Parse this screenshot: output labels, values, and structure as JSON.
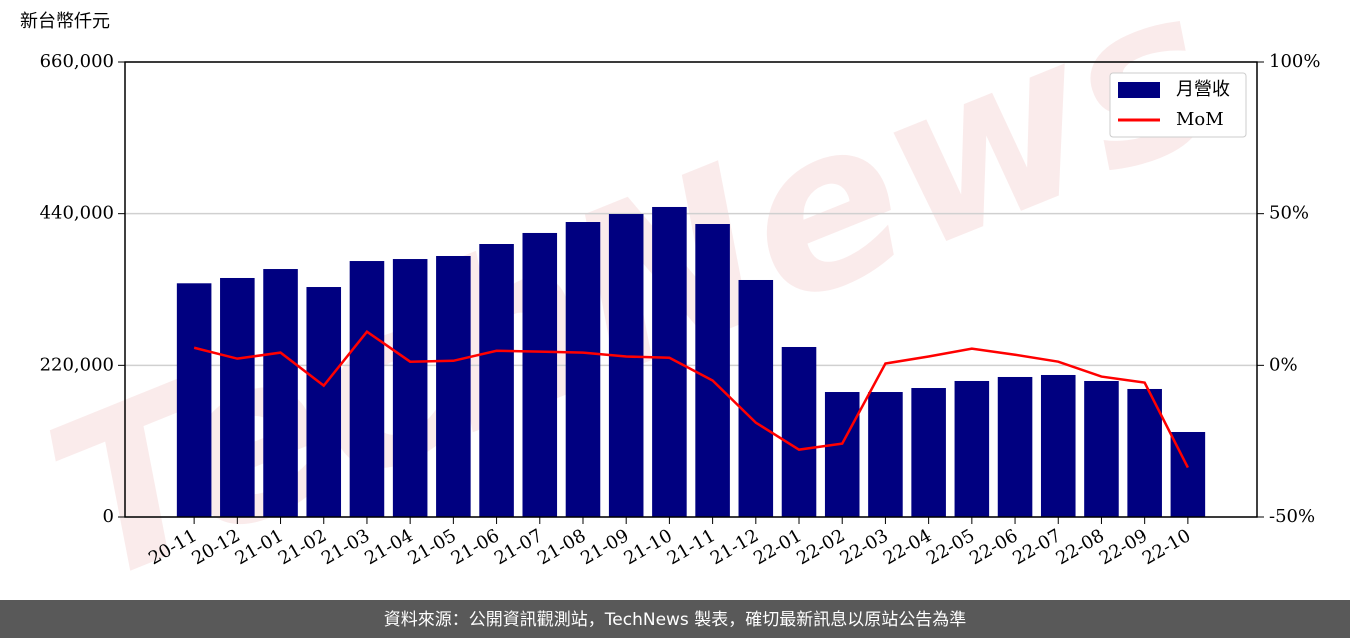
{
  "chart_data": {
    "type": "bar",
    "y_label": "新台幣仟元",
    "watermark": "TechNews",
    "source": "資料來源：公開資訊觀測站，TechNews 製表，確切最新訊息以原站公告為準",
    "categories": [
      "20-11",
      "20-12",
      "21-01",
      "21-02",
      "21-03",
      "21-04",
      "21-05",
      "21-06",
      "21-07",
      "21-08",
      "21-09",
      "21-10",
      "21-11",
      "21-12",
      "22-01",
      "22-02",
      "22-03",
      "22-04",
      "22-05",
      "22-06",
      "22-07",
      "22-08",
      "22-09",
      "22-10"
    ],
    "series": [
      {
        "name": "月營收",
        "type": "bar",
        "color": "#000080",
        "values": [
          339000,
          346700,
          359700,
          333600,
          371300,
          374200,
          378600,
          396000,
          412000,
          427900,
          439500,
          449700,
          425000,
          343800,
          246600,
          181300,
          181300,
          187100,
          197300,
          203100,
          206000,
          197300,
          185700,
          123300
        ]
      },
      {
        "name": "MoM",
        "type": "line",
        "axis": "y2",
        "color": "#ff0000",
        "values": [
          5.8,
          2.2,
          4.2,
          -6.7,
          11.1,
          1.2,
          1.5,
          4.8,
          4.5,
          4.2,
          2.9,
          2.5,
          -5.0,
          -18.9,
          -27.8,
          -25.8,
          0.6,
          2.9,
          5.5,
          3.5,
          1.2,
          -3.7,
          -5.7,
          -33.7
        ]
      }
    ],
    "ylim": [
      0,
      660000
    ],
    "yticks": [
      {
        "value": 0,
        "label": "0"
      },
      {
        "value": 220000,
        "label": "220,000"
      },
      {
        "value": 440000,
        "label": "440,000"
      },
      {
        "value": 660000,
        "label": "660,000"
      }
    ],
    "y2lim": [
      -50,
      100
    ],
    "y2ticks": [
      {
        "value": -50,
        "label": "-50%"
      },
      {
        "value": 0,
        "label": "0%"
      },
      {
        "value": 50,
        "label": "50%"
      },
      {
        "value": 100,
        "label": "100%"
      }
    ],
    "grid": true,
    "legend": "upper right"
  }
}
